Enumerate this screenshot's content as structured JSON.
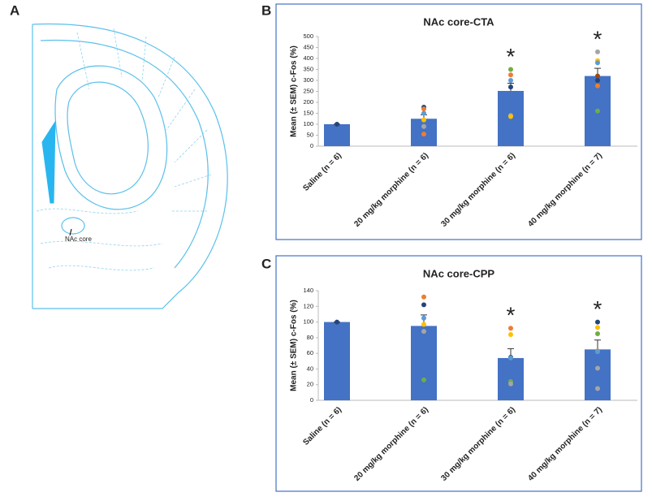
{
  "panels": [
    "A",
    "B",
    "C"
  ],
  "diagram": {
    "label": "NAc core"
  },
  "chart_data": [
    {
      "type": "bar",
      "title": "NAc core-CTA",
      "y_label": "Mean (± SEM) c-Fos (%)",
      "categories": [
        "Saline (n = 6)",
        "20 mg/kg morphine (n = 6)",
        "30 mg/kg morphine (n = 6)",
        "40 mg/kg morphine (n = 7)"
      ],
      "values": [
        100,
        125,
        252,
        320
      ],
      "errors": [
        0,
        18,
        35,
        35
      ],
      "color": "#4472c4",
      "points": [
        [
          100
        ],
        [
          178,
          170,
          150,
          120,
          90,
          55
        ],
        [
          350,
          325,
          300,
          270,
          140,
          135
        ],
        [
          430,
          390,
          380,
          320,
          300,
          275,
          160
        ]
      ],
      "point_colors": [
        [
          "#264478"
        ],
        [
          "#264478",
          "#ed7d31",
          "#5b9bd5",
          "#ffc000",
          "#a5a5a5",
          "#ed7d31"
        ],
        [
          "#70ad47",
          "#ed7d31",
          "#5b9bd5",
          "#264478",
          "#a5a5a5",
          "#ffc000"
        ],
        [
          "#a5a5a5",
          "#ffc000",
          "#5b9bd5",
          "#9e480e",
          "#264478",
          "#ed7d31",
          "#70ad47"
        ]
      ],
      "ylim": [
        0,
        500
      ],
      "yticks": [
        0,
        50,
        100,
        150,
        200,
        250,
        300,
        350,
        400,
        450,
        500
      ],
      "significant": [
        false,
        false,
        true,
        true
      ],
      "marker_text": "*"
    },
    {
      "type": "bar",
      "title": "NAc core-CPP",
      "y_label": "Mean (± SEM) c-Fos (%)",
      "categories": [
        "Saline (n = 6)",
        "20 mg/kg morphine (n = 6)",
        "30 mg/kg morphine (n = 6)",
        "40 mg/kg morphine (n = 7)"
      ],
      "values": [
        100,
        95,
        54,
        65
      ],
      "errors": [
        0,
        14,
        12,
        12
      ],
      "color": "#4472c4",
      "points": [
        [
          100
        ],
        [
          132,
          122,
          105,
          97,
          88,
          26
        ],
        [
          92,
          84,
          55,
          24,
          21,
          54
        ],
        [
          100,
          93,
          85,
          63,
          62,
          41,
          15
        ]
      ],
      "point_colors": [
        [
          "#264478"
        ],
        [
          "#ed7d31",
          "#264478",
          "#5b9bd5",
          "#ffc000",
          "#a5a5a5",
          "#70ad47"
        ],
        [
          "#ed7d31",
          "#ffc000",
          "#264478",
          "#70ad47",
          "#a5a5a5",
          "#5b9bd5"
        ],
        [
          "#264478",
          "#ffc000",
          "#70ad47",
          "#ed7d31",
          "#5b9bd5",
          "#a5a5a5",
          "#a5a5a5"
        ]
      ],
      "ylim": [
        0,
        140
      ],
      "yticks": [
        0,
        20,
        40,
        60,
        80,
        100,
        120,
        140
      ],
      "significant": [
        false,
        false,
        true,
        true
      ],
      "marker_text": "*"
    }
  ]
}
